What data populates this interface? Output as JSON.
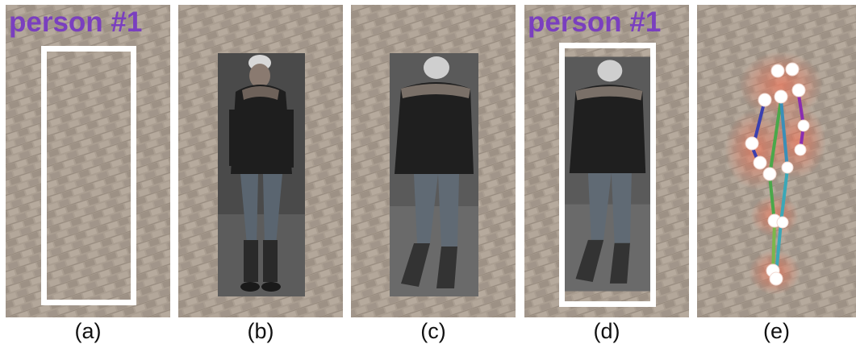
{
  "figure": {
    "panels": [
      {
        "id": "a",
        "caption": "(a)",
        "tag": "person #1"
      },
      {
        "id": "b",
        "caption": "(b)"
      },
      {
        "id": "c",
        "caption": "(c)"
      },
      {
        "id": "d",
        "caption": "(d)",
        "tag": "person #1"
      },
      {
        "id": "e",
        "caption": "(e)"
      }
    ],
    "colors": {
      "tag_text": "#7a3fbf",
      "ground": "#a69a8e",
      "box": "#ffffff",
      "skeleton_left_arm": "#3a3fb0",
      "skeleton_right_arm": "#8a2db0",
      "skeleton_spine": "#4aa84a",
      "skeleton_leg": "#3aa8b8",
      "joint": "#ffffff",
      "heat": "#ff6a4a"
    }
  }
}
